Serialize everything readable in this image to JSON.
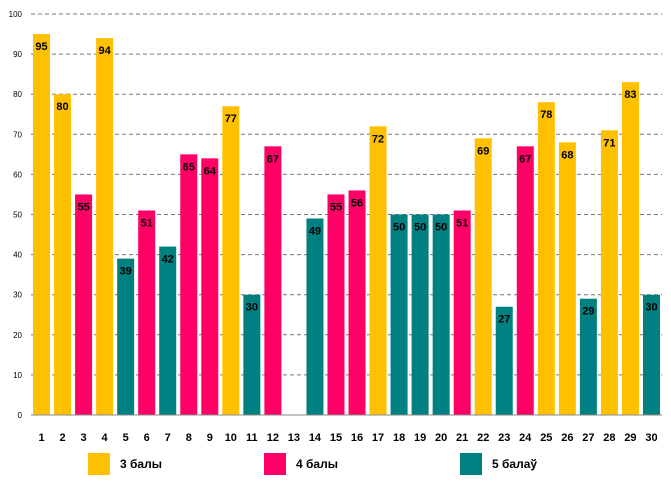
{
  "chart_data": {
    "type": "bar",
    "title": "",
    "xlabel": "",
    "ylabel": "",
    "ylim": [
      0,
      100
    ],
    "yticks": [
      0,
      10,
      20,
      30,
      40,
      50,
      60,
      70,
      80,
      90,
      100
    ],
    "grid": true,
    "legend_position": "bottom",
    "categories": [
      "1",
      "2",
      "3",
      "4",
      "5",
      "6",
      "7",
      "8",
      "9",
      "10",
      "11",
      "12",
      "13",
      "14",
      "15",
      "16",
      "17",
      "18",
      "19",
      "20",
      "21",
      "22",
      "23",
      "24",
      "25",
      "26",
      "27",
      "28",
      "29",
      "30"
    ],
    "values": [
      95,
      80,
      55,
      94,
      39,
      51,
      42,
      65,
      64,
      77,
      30,
      67,
      null,
      49,
      55,
      56,
      72,
      50,
      50,
      50,
      51,
      69,
      27,
      67,
      78,
      68,
      29,
      71,
      83,
      30
    ],
    "groups": [
      "3",
      "3",
      "4",
      "3",
      "5",
      "4",
      "5",
      "4",
      "4",
      "3",
      "5",
      "4",
      null,
      "5",
      "4",
      "4",
      "3",
      "5",
      "5",
      "5",
      "4",
      "3",
      "5",
      "4",
      "3",
      "3",
      "5",
      "3",
      "3",
      "5"
    ],
    "legend": [
      {
        "key": "3",
        "label": "3 балы",
        "color": "#FFC000"
      },
      {
        "key": "4",
        "label": "4 балы",
        "color": "#FF0066"
      },
      {
        "key": "5",
        "label": "5 балаў",
        "color": "#008080"
      }
    ]
  }
}
